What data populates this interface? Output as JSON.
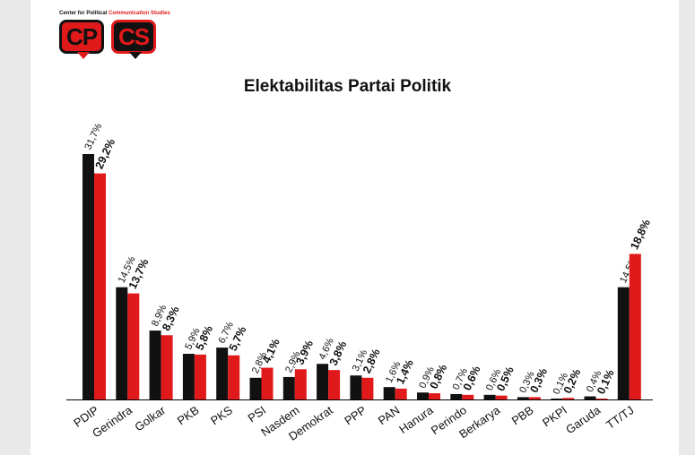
{
  "logo": {
    "tagline_part1": "Center for Political ",
    "tagline_part2": "Communication Studies",
    "left": "CP",
    "right": "CS"
  },
  "colors": {
    "series1": "#111111",
    "series2": "#e0191b",
    "axis": "#000000"
  },
  "chart_data": {
    "type": "bar",
    "title": "Elektabilitas Partai Politik",
    "xlabel": "",
    "ylabel": "",
    "ylim": [
      0,
      32
    ],
    "grid": false,
    "legend": "none",
    "categories": [
      "PDIP",
      "Gerindra",
      "Golkar",
      "PKB",
      "PKS",
      "PSI",
      "Nasdem",
      "Demokrat",
      "PPP",
      "PAN",
      "Hanura",
      "Perindo",
      "Berkarya",
      "PBB",
      "PKPI",
      "Garuda",
      "TT/TJ"
    ],
    "series": [
      {
        "values": [
          31.7,
          14.5,
          8.9,
          5.9,
          6.7,
          2.8,
          2.9,
          4.6,
          3.1,
          1.6,
          0.9,
          0.7,
          0.6,
          0.3,
          0.1,
          0.4,
          14.5
        ],
        "labels": [
          "31,7%",
          "14,5%",
          "8,9%",
          "5,9%",
          "6,7%",
          "2,8%",
          "2,9%",
          "4,6%",
          "3,1%",
          "1,6%",
          "0,9%",
          "0,7%",
          "0,6%",
          "0,3%",
          "0,1%",
          "0,4%",
          "14,5%"
        ]
      },
      {
        "values": [
          29.2,
          13.7,
          8.3,
          5.8,
          5.7,
          4.1,
          3.9,
          3.8,
          2.8,
          1.4,
          0.8,
          0.6,
          0.5,
          0.3,
          0.2,
          0.1,
          18.8
        ],
        "labels": [
          "29,2%",
          "13,7%",
          "8,3%",
          "5,8%",
          "5,7%",
          "4,1%",
          "3,9%",
          "3,8%",
          "2,8%",
          "1,4%",
          "0,8%",
          "0,6%",
          "0,5%",
          "0,3%",
          "0,2%",
          "0,1%",
          "18,8%"
        ]
      }
    ]
  }
}
